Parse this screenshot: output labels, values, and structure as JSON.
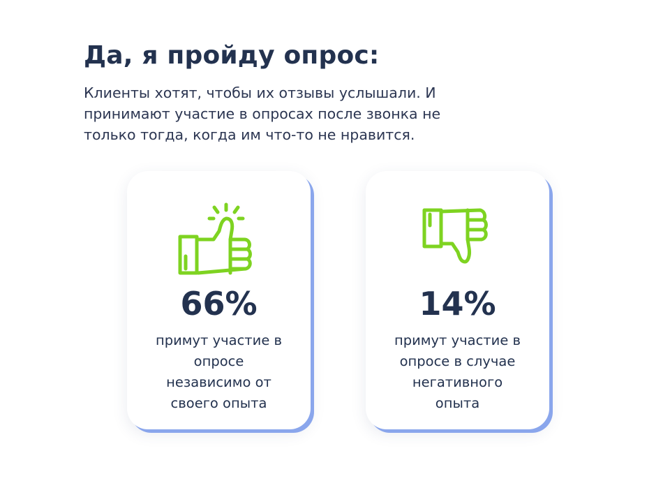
{
  "heading": {
    "title": "Да, я пройду опрос:",
    "subtitle": "Клиенты хотят, чтобы их отзывы услышали. И\nпринимают участие в опросах после звонка не\nтолько тогда, когда им что-то не  нравится."
  },
  "cards": [
    {
      "icon": "thumbs-up-icon",
      "value": "66%",
      "caption": "примут участие в\nопросе\nнезависимо от\nсвоего опыта"
    },
    {
      "icon": "thumbs-down-icon",
      "value": "14%",
      "caption": "примут участие в\nопросе в случае\nнегативного\nопыта"
    }
  ],
  "colors": {
    "text": "#23324f",
    "icon_green": "#7ed321",
    "card_shadow": "#8aa6ec"
  }
}
